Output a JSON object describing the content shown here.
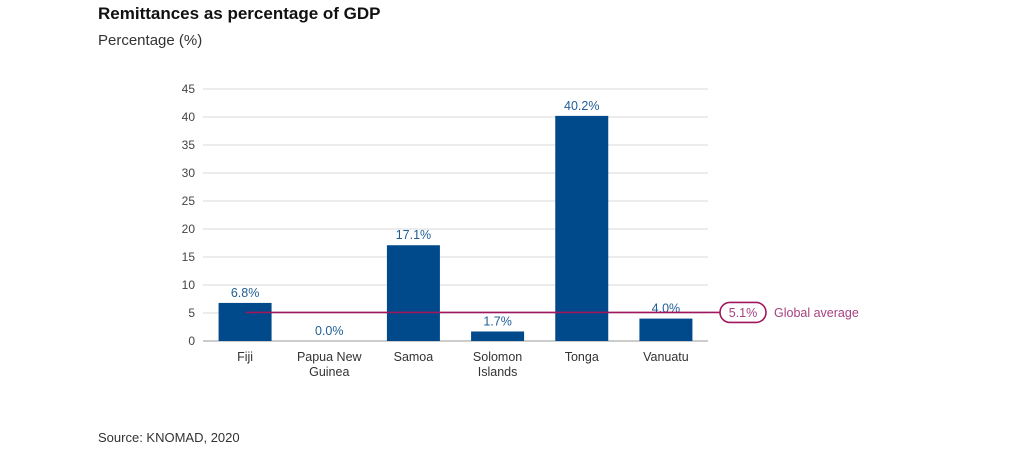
{
  "title": "Remittances as percentage of GDP",
  "subtitle": "Percentage (%)",
  "source": "Source: KNOMAD, 2020",
  "colors": {
    "bar": "#004a8c",
    "average": "#a0175e",
    "average_text": "#a8417e",
    "data_label": "#1f5e96",
    "grid": "#d9d9d9"
  },
  "chart_data": {
    "type": "bar",
    "categories": [
      [
        "Fiji"
      ],
      [
        "Papua New",
        "Guinea"
      ],
      [
        "Samoa"
      ],
      [
        "Solomon",
        "Islands"
      ],
      [
        "Tonga"
      ],
      [
        "Vanuatu"
      ]
    ],
    "values": [
      6.8,
      0.0,
      17.1,
      1.7,
      40.2,
      4.0
    ],
    "data_labels": [
      "6.8%",
      "0.0%",
      "17.1%",
      "1.7%",
      "40.2%",
      "4.0%"
    ],
    "ylim": [
      0,
      45
    ],
    "yticks": [
      0,
      5,
      10,
      15,
      20,
      25,
      30,
      35,
      40,
      45
    ],
    "grid": true,
    "reference_line": {
      "value": 5.1,
      "badge": "5.1%",
      "label": "Global average"
    }
  }
}
